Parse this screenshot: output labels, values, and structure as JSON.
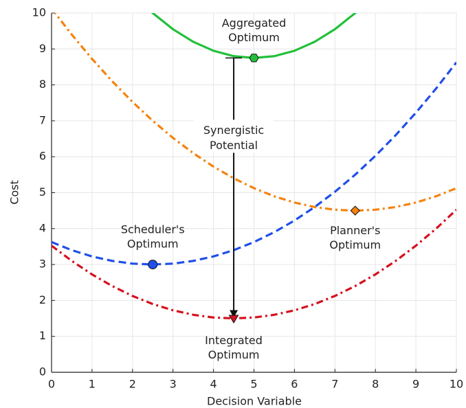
{
  "chart_data": {
    "type": "line",
    "xlabel": "Decision Variable",
    "ylabel": "Cost",
    "xlim": [
      0,
      10
    ],
    "ylim": [
      0,
      10
    ],
    "xticks": [
      0,
      1,
      2,
      3,
      4,
      5,
      6,
      7,
      8,
      9,
      10
    ],
    "yticks": [
      0,
      1,
      2,
      3,
      4,
      5,
      6,
      7,
      8,
      9,
      10
    ],
    "grid": true,
    "x": [
      0,
      0.5,
      1,
      1.5,
      2,
      2.5,
      3,
      3.5,
      4,
      4.5,
      5,
      5.5,
      6,
      6.5,
      7,
      7.5,
      8,
      8.5,
      9,
      9.5,
      10
    ],
    "series": [
      {
        "color": "#22c03a",
        "dash": "solid",
        "values": [
          null,
          null,
          null,
          null,
          10.55,
          10,
          9.55,
          9.2,
          8.95,
          8.8,
          8.75,
          8.8,
          8.95,
          9.2,
          9.55,
          10,
          10.55,
          null,
          null,
          null,
          null
        ]
      },
      {
        "color": "#f5820d",
        "dash": "dashdot",
        "values": [
          10.125,
          9.4,
          8.725,
          8.1,
          7.525,
          7,
          6.525,
          6.1,
          5.725,
          5.4,
          5.125,
          4.9,
          4.725,
          4.6,
          4.525,
          4.5,
          4.525,
          4.6,
          4.725,
          4.9,
          5.125
        ]
      },
      {
        "color": "#1f4fe8",
        "dash": "dash",
        "values": [
          3.625,
          3.4,
          3.225,
          3.1,
          3.025,
          3,
          3.025,
          3.1,
          3.225,
          3.4,
          3.625,
          3.9,
          4.225,
          4.6,
          5.025,
          5.5,
          6.025,
          6.6,
          7.225,
          7.9,
          8.625
        ]
      },
      {
        "color": "#d6101e",
        "dash": "dashdot",
        "values": [
          3.525,
          3.1,
          2.725,
          2.4,
          2.125,
          1.9,
          1.725,
          1.6,
          1.525,
          1.5,
          1.525,
          1.6,
          1.725,
          1.9,
          2.125,
          2.4,
          2.725,
          3.1,
          3.525,
          4,
          4.525
        ]
      }
    ],
    "points": [
      {
        "x": 5,
        "y": 8.75,
        "color": "#22c03a",
        "marker": "hexagon",
        "label": [
          "Aggregated",
          "Optimum"
        ]
      },
      {
        "x": 7.5,
        "y": 4.5,
        "color": "#f5820d",
        "marker": "diamond",
        "label": [
          "Planner's",
          "Optimum"
        ]
      },
      {
        "x": 2.5,
        "y": 3,
        "color": "#1f4fe8",
        "marker": "circle",
        "label": [
          "Scheduler's",
          "Optimum"
        ]
      },
      {
        "x": 4.5,
        "y": 1.5,
        "color": "#d6101e",
        "marker": "triangle-down",
        "label": [
          "Integrated",
          "Optimum"
        ]
      }
    ],
    "arrow": {
      "x": 4.5,
      "from": 8.75,
      "to": 1.5,
      "label": [
        "Synergistic",
        "Potential"
      ]
    }
  }
}
